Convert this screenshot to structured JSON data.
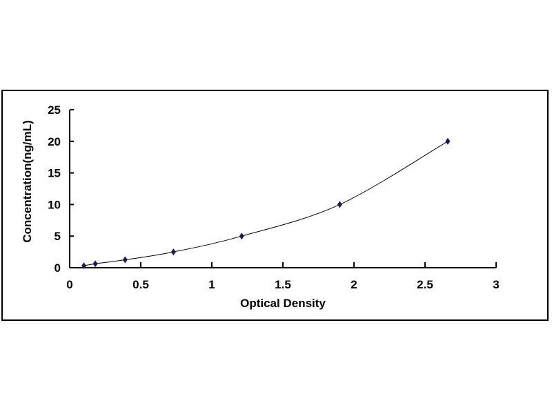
{
  "chart_data": {
    "type": "scatter",
    "title": "",
    "xlabel": "Optical Density",
    "ylabel": "Concentration(ng/mL)",
    "xlim": [
      0,
      3
    ],
    "ylim": [
      0,
      25
    ],
    "x_ticks": [
      "0",
      "0.5",
      "1",
      "1.5",
      "2",
      "2.5",
      "3"
    ],
    "y_ticks": [
      "0",
      "5",
      "10",
      "15",
      "20",
      "25"
    ],
    "grid": false,
    "legend": "none",
    "trendline": "smooth curve through points",
    "marker": "diamond",
    "marker_color": "#1a1a5a",
    "line_color": "#000000",
    "series": [
      {
        "x": [
          0.1,
          0.18,
          0.39,
          0.73,
          1.21,
          1.9,
          2.66
        ],
        "y": [
          0.31,
          0.625,
          1.25,
          2.5,
          5,
          10,
          20
        ]
      }
    ]
  }
}
